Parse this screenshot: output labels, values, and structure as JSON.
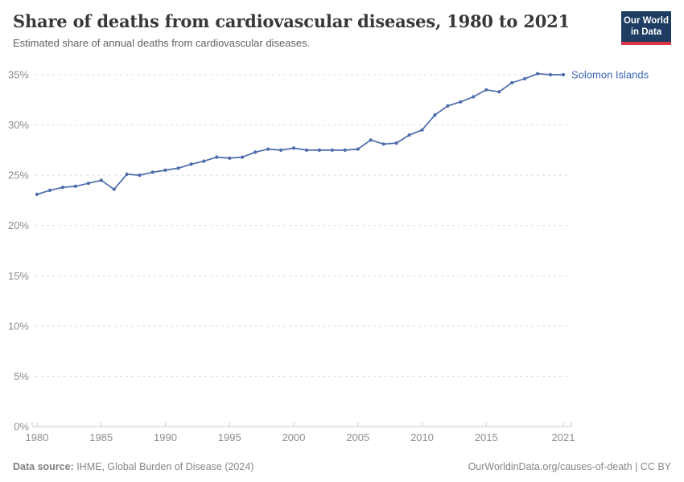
{
  "header": {
    "title": "Share of deaths from cardiovascular diseases, 1980 to 2021",
    "subtitle": "Estimated share of annual deaths from cardiovascular diseases."
  },
  "logo": {
    "line1": "Our World",
    "line2": "in Data",
    "bg_color": "#1d3d63",
    "accent_color": "#dc3545"
  },
  "chart_data": {
    "type": "line",
    "title": "Share of deaths from cardiovascular diseases, 1980 to 2021",
    "xlabel": "",
    "ylabel": "",
    "grid": "horizontal-dashed",
    "legend_position": "end-of-line-label",
    "xlim": [
      1980,
      2021
    ],
    "ylim": [
      0,
      35
    ],
    "y_ticks": [
      0,
      5,
      10,
      15,
      20,
      25,
      30,
      35
    ],
    "y_tick_labels": [
      "0%",
      "5%",
      "10%",
      "15%",
      "20%",
      "25%",
      "30%",
      "35%"
    ],
    "x_ticks": [
      1980,
      1985,
      1990,
      1995,
      2000,
      2005,
      2010,
      2015,
      2021
    ],
    "x_tick_labels": [
      "1980",
      "1985",
      "1990",
      "1995",
      "2000",
      "2005",
      "2010",
      "2015",
      "2021"
    ],
    "series": [
      {
        "name": "Solomon Islands",
        "color": "#4c6bab",
        "label_color": "#3d69b2",
        "x": [
          1980,
          1981,
          1982,
          1983,
          1984,
          1985,
          1986,
          1987,
          1988,
          1989,
          1990,
          1991,
          1992,
          1993,
          1994,
          1995,
          1996,
          1997,
          1998,
          1999,
          2000,
          2001,
          2002,
          2003,
          2004,
          2005,
          2006,
          2007,
          2008,
          2009,
          2010,
          2011,
          2012,
          2013,
          2014,
          2015,
          2016,
          2017,
          2018,
          2019,
          2020,
          2021
        ],
        "values": [
          23.1,
          23.5,
          23.8,
          23.9,
          24.2,
          24.5,
          23.6,
          25.1,
          25.0,
          25.3,
          25.5,
          25.7,
          26.1,
          26.4,
          26.8,
          26.7,
          26.8,
          27.3,
          27.6,
          27.5,
          27.7,
          27.5,
          27.5,
          27.5,
          27.5,
          27.6,
          28.5,
          28.1,
          28.2,
          29.0,
          29.5,
          31.0,
          31.9,
          32.3,
          32.8,
          33.5,
          33.3,
          34.2,
          34.6,
          35.1,
          35.0,
          35.0
        ]
      }
    ]
  },
  "footer": {
    "source_label": "Data source:",
    "source_text": " IHME, Global Burden of Disease (2024)",
    "link_text": "OurWorldinData.org/causes-of-death | CC BY"
  }
}
